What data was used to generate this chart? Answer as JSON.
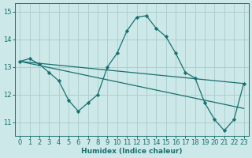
{
  "xlabel": "Humidex (Indice chaleur)",
  "bg_color": "#cce8e8",
  "grid_color": "#aacccc",
  "line_color": "#1a7070",
  "xlim": [
    -0.5,
    23.5
  ],
  "ylim": [
    10.5,
    15.3
  ],
  "yticks": [
    11,
    12,
    13,
    14,
    15
  ],
  "xticks": [
    0,
    1,
    2,
    3,
    4,
    5,
    6,
    7,
    8,
    9,
    10,
    11,
    12,
    13,
    14,
    15,
    16,
    17,
    18,
    19,
    20,
    21,
    22,
    23
  ],
  "series1_x": [
    0,
    1,
    2,
    3,
    4,
    5,
    6,
    7,
    8,
    9,
    10,
    11,
    12,
    13,
    14,
    15,
    16,
    17,
    18,
    19,
    20,
    21,
    22,
    23
  ],
  "series1_y": [
    13.2,
    13.3,
    13.1,
    12.8,
    12.5,
    11.8,
    11.4,
    11.7,
    12.0,
    13.0,
    13.5,
    14.3,
    14.8,
    14.85,
    14.4,
    14.1,
    13.5,
    12.8,
    12.6,
    11.7,
    11.1,
    10.7,
    11.1,
    12.4
  ],
  "line2_x0": 0,
  "line2_y0": 13.2,
  "line2_x1": 23,
  "line2_y1": 12.4,
  "line3_x0": 0,
  "line3_y0": 13.2,
  "line3_x1": 23,
  "line3_y1": 11.5
}
